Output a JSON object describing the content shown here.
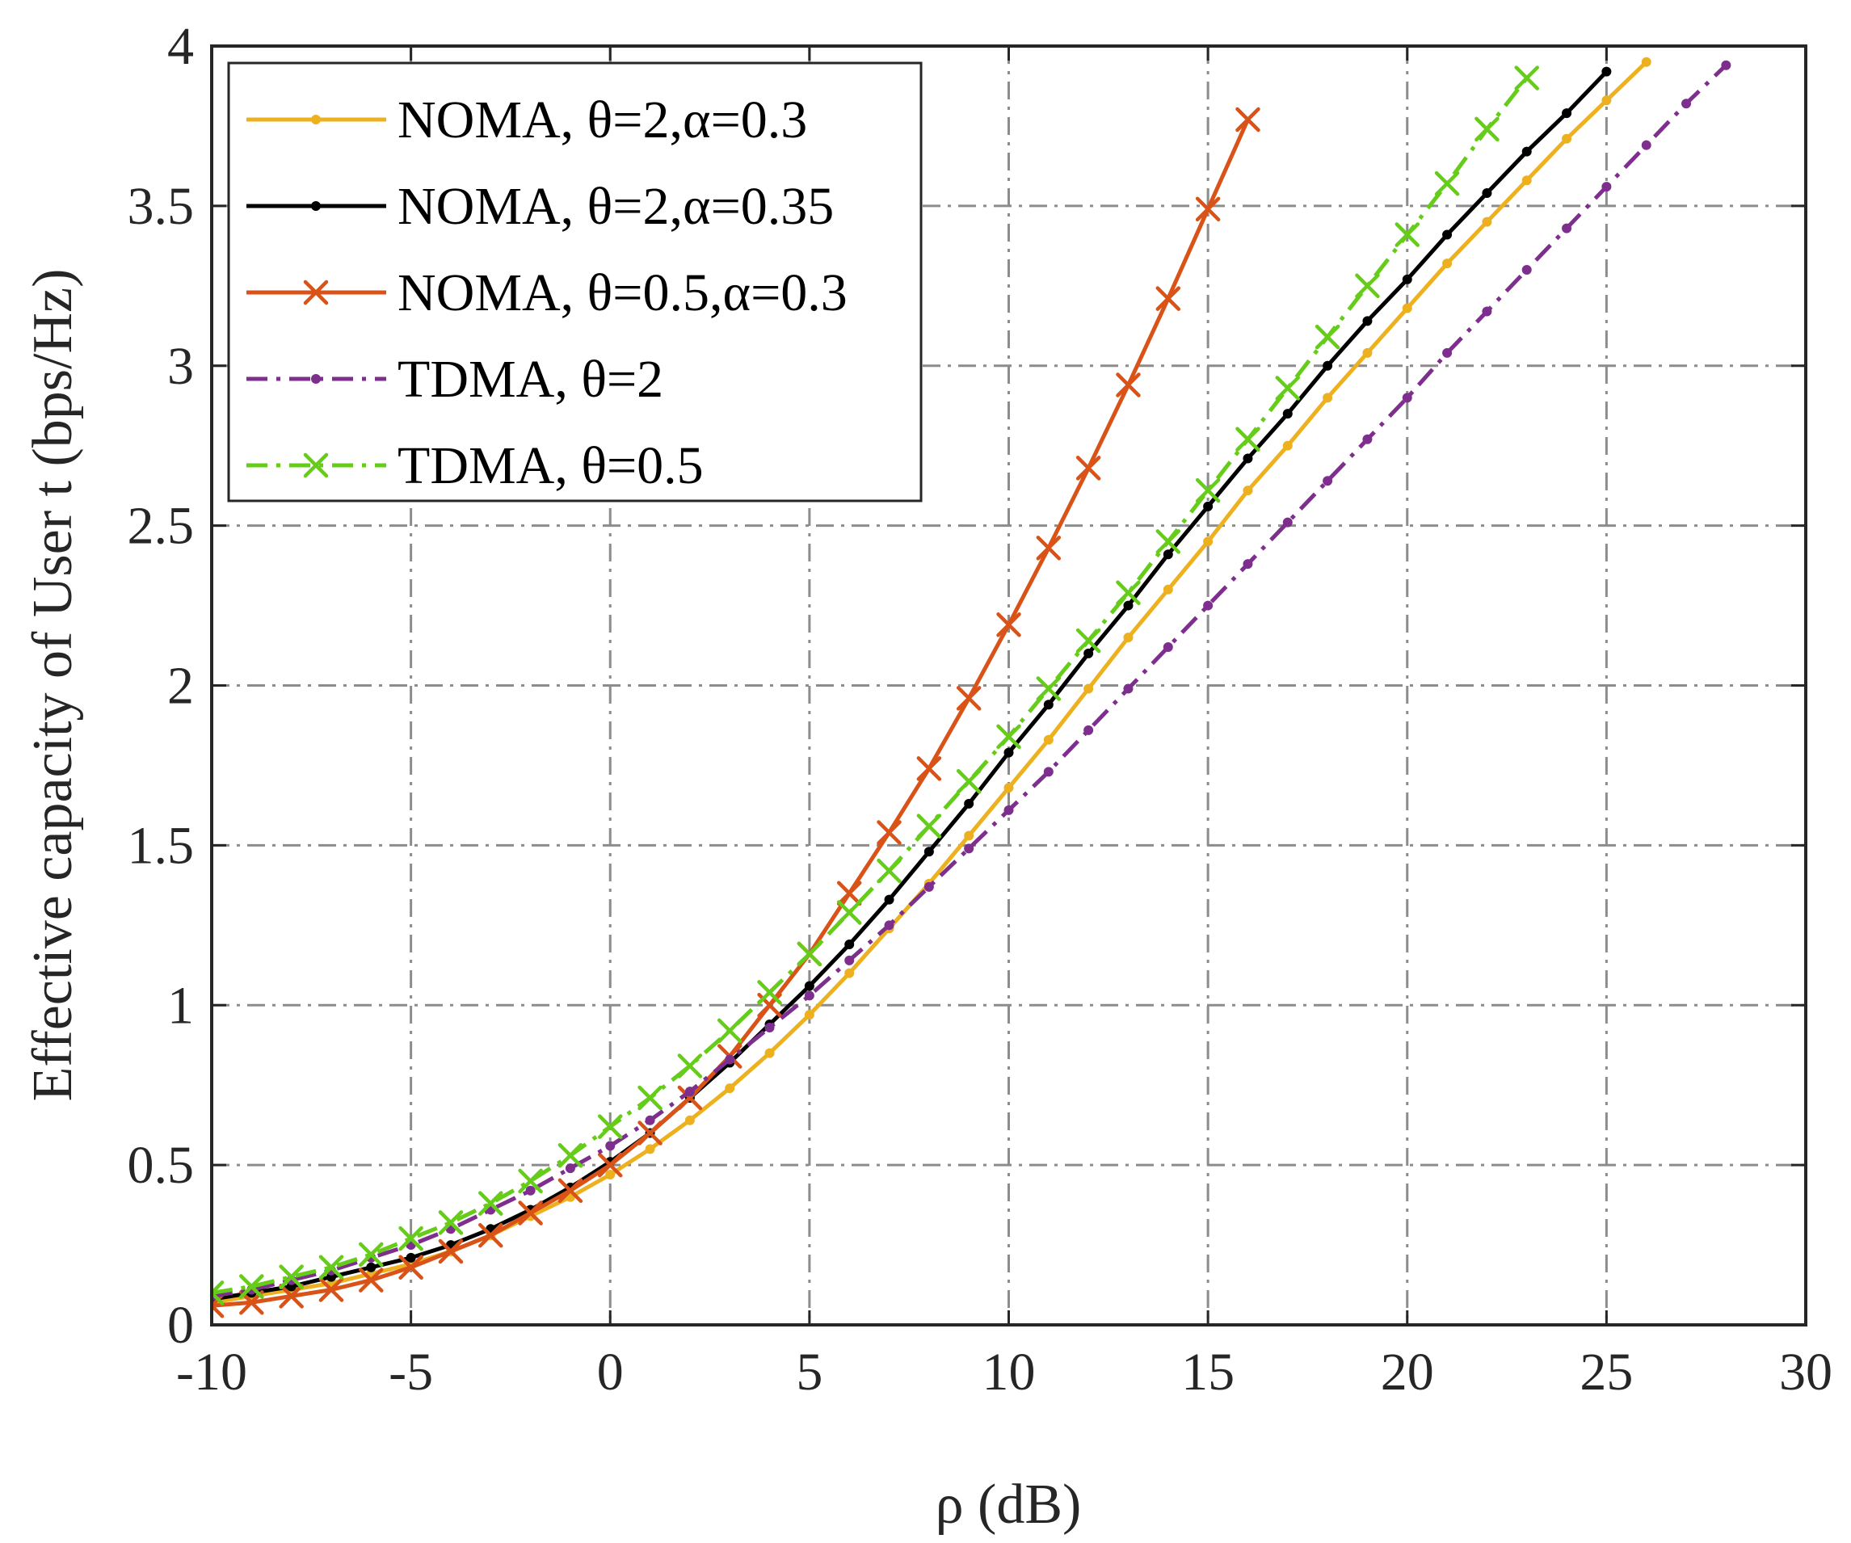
{
  "chart_data": {
    "type": "line",
    "title": "",
    "xlabel": "ρ (dB)",
    "ylabel": "Effective capacity of User  t (bps/Hz)",
    "xlim": [
      -10,
      30
    ],
    "ylim": [
      0,
      4
    ],
    "xticks": [
      "-10",
      "-5",
      "0",
      "5",
      "10",
      "15",
      "20",
      "25",
      "30"
    ],
    "yticks": [
      "0",
      "0.5",
      "1",
      "1.5",
      "2",
      "2.5",
      "3",
      "3.5",
      "4"
    ],
    "grid": true,
    "legend_position": "top-left",
    "series": [
      {
        "name": "NOMA, θ=2,α=0.3",
        "color": "#EDB120",
        "line_style": "solid",
        "marker": "dot",
        "x": [
          -10,
          -9,
          -8,
          -7,
          -6,
          -5,
          -4,
          -3,
          -2,
          -1,
          0,
          1,
          2,
          3,
          4,
          5,
          6,
          7,
          8,
          9,
          10,
          11,
          12,
          13,
          14,
          15,
          16,
          17,
          18,
          19,
          20,
          21,
          22,
          23,
          24,
          25,
          26
        ],
        "y": [
          0.07,
          0.09,
          0.11,
          0.13,
          0.16,
          0.19,
          0.23,
          0.28,
          0.34,
          0.4,
          0.47,
          0.55,
          0.64,
          0.74,
          0.85,
          0.97,
          1.1,
          1.24,
          1.38,
          1.53,
          1.68,
          1.83,
          1.99,
          2.15,
          2.3,
          2.45,
          2.61,
          2.75,
          2.9,
          3.04,
          3.18,
          3.32,
          3.45,
          3.58,
          3.71,
          3.83,
          3.95
        ]
      },
      {
        "name": "NOMA, θ=2,α=0.35",
        "color": "#000000",
        "line_style": "solid",
        "marker": "dot",
        "x": [
          -10,
          -9,
          -8,
          -7,
          -6,
          -5,
          -4,
          -3,
          -2,
          -1,
          0,
          1,
          2,
          3,
          4,
          5,
          6,
          7,
          8,
          9,
          10,
          11,
          12,
          13,
          14,
          15,
          16,
          17,
          18,
          19,
          20,
          21,
          22,
          23,
          24,
          25
        ],
        "y": [
          0.08,
          0.1,
          0.12,
          0.15,
          0.18,
          0.21,
          0.25,
          0.3,
          0.36,
          0.43,
          0.51,
          0.6,
          0.71,
          0.82,
          0.94,
          1.06,
          1.19,
          1.33,
          1.48,
          1.63,
          1.79,
          1.94,
          2.1,
          2.25,
          2.41,
          2.56,
          2.71,
          2.85,
          3.0,
          3.14,
          3.27,
          3.41,
          3.54,
          3.67,
          3.79,
          3.92
        ]
      },
      {
        "name": "NOMA, θ=0.5,α=0.3",
        "color": "#D95319",
        "line_style": "solid",
        "marker": "x",
        "x": [
          -10,
          -9,
          -8,
          -7,
          -6,
          -5,
          -4,
          -3,
          -2,
          -1,
          0,
          1,
          2,
          3,
          4,
          5,
          6,
          7,
          8,
          9,
          10,
          11,
          12,
          13,
          14,
          15,
          16
        ],
        "y": [
          0.06,
          0.07,
          0.09,
          0.11,
          0.14,
          0.18,
          0.23,
          0.28,
          0.35,
          0.42,
          0.5,
          0.6,
          0.71,
          0.84,
          1.0,
          1.16,
          1.35,
          1.54,
          1.74,
          1.96,
          2.19,
          2.43,
          2.68,
          2.94,
          3.21,
          3.49,
          3.77
        ]
      },
      {
        "name": "TDMA, θ=2",
        "color": "#7E2F8E",
        "line_style": "dashdot",
        "marker": "dot",
        "x": [
          -10,
          -9,
          -8,
          -7,
          -6,
          -5,
          -4,
          -3,
          -2,
          -1,
          0,
          1,
          2,
          3,
          4,
          5,
          6,
          7,
          8,
          9,
          10,
          11,
          12,
          13,
          14,
          15,
          16,
          17,
          18,
          19,
          20,
          21,
          22,
          23,
          24,
          25,
          26,
          27,
          28
        ],
        "y": [
          0.09,
          0.11,
          0.14,
          0.17,
          0.21,
          0.25,
          0.3,
          0.36,
          0.42,
          0.49,
          0.56,
          0.64,
          0.73,
          0.83,
          0.93,
          1.03,
          1.14,
          1.25,
          1.37,
          1.49,
          1.61,
          1.73,
          1.86,
          1.99,
          2.12,
          2.25,
          2.38,
          2.51,
          2.64,
          2.77,
          2.9,
          3.04,
          3.17,
          3.3,
          3.43,
          3.56,
          3.69,
          3.82,
          3.94
        ]
      },
      {
        "name": "TDMA, θ=0.5",
        "color": "#66CC1A",
        "line_style": "dashdot",
        "marker": "x",
        "x": [
          -10,
          -9,
          -8,
          -7,
          -6,
          -5,
          -4,
          -3,
          -2,
          -1,
          0,
          1,
          2,
          3,
          4,
          5,
          6,
          7,
          8,
          9,
          10,
          11,
          12,
          13,
          14,
          15,
          16,
          17,
          18,
          19,
          20,
          21,
          22,
          23
        ],
        "y": [
          0.1,
          0.12,
          0.15,
          0.18,
          0.22,
          0.27,
          0.32,
          0.38,
          0.45,
          0.53,
          0.62,
          0.71,
          0.81,
          0.92,
          1.04,
          1.16,
          1.29,
          1.42,
          1.56,
          1.7,
          1.84,
          1.99,
          2.14,
          2.29,
          2.45,
          2.61,
          2.77,
          2.93,
          3.09,
          3.25,
          3.41,
          3.57,
          3.74,
          3.9
        ]
      }
    ]
  }
}
